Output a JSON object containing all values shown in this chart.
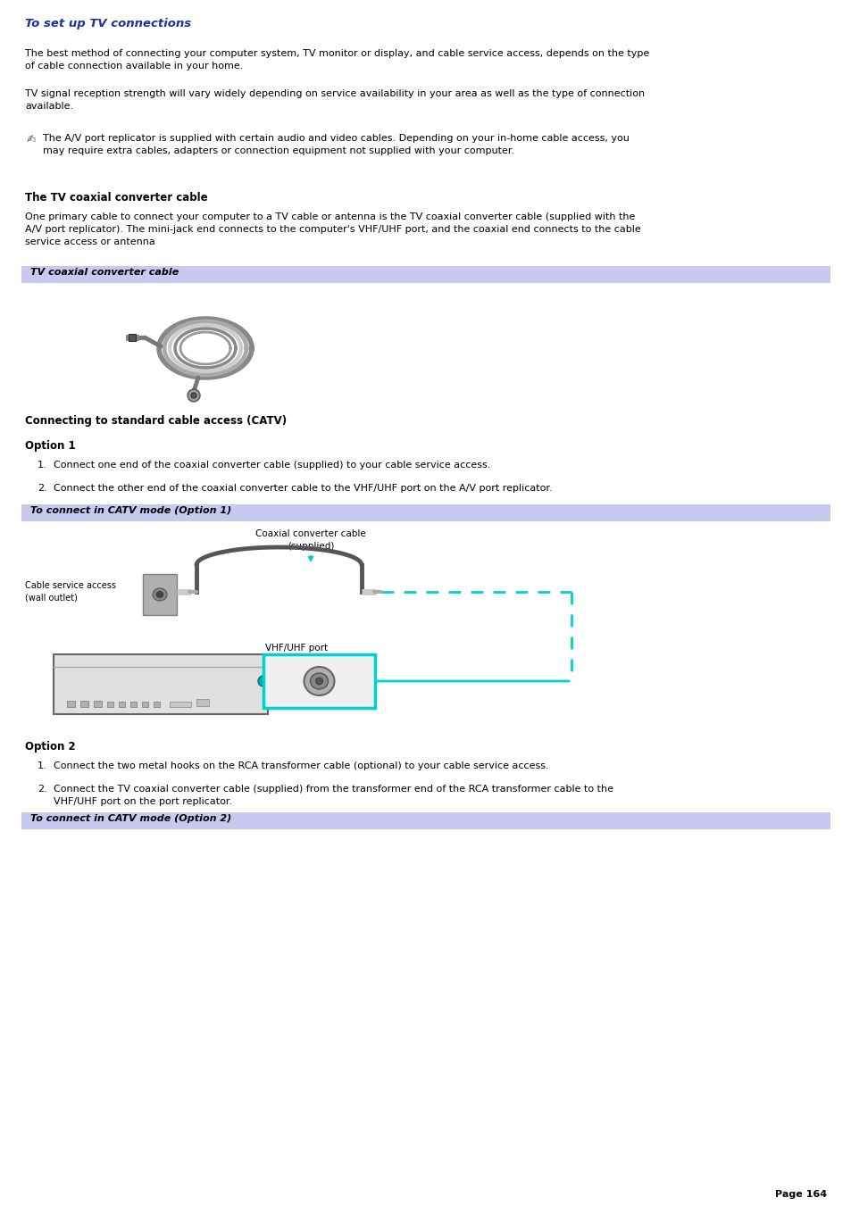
{
  "bg_color": "#ffffff",
  "title": "To set up TV connections",
  "title_color": "#1a3399",
  "title_fontsize": 9.5,
  "body_fontsize": 8.0,
  "bold_fontsize": 8.5,
  "small_fontsize": 7.5,
  "header_bg": "#c8c8f0",
  "header_text_color": "#000033",
  "page_number": "Page 164",
  "para1": "The best method of connecting your computer system, TV monitor or display, and cable service access, depends on the type\nof cable connection available in your home.",
  "para2": "TV signal reception strength will vary widely depending on service availability in your area as well as the type of connection\navailable.",
  "note_text": "The A/V port replicator is supplied with certain audio and video cables. Depending on your in-home cable access, you\nmay require extra cables, adapters or connection equipment not supplied with your computer.",
  "section1_title": "The TV coaxial converter cable",
  "section1_para": "One primary cable to connect your computer to a TV cable or antenna is the TV coaxial converter cable (supplied with the\nA/V port replicator). The mini-jack end connects to the computer's VHF/UHF port, and the coaxial end connects to the cable\nservice access or antenna",
  "header1": "TV coaxial converter cable",
  "section2_title": "Connecting to standard cable access (CATV)",
  "option1_title": "Option 1",
  "opt1_item1": "Connect one end of the coaxial converter cable (supplied) to your cable service access.",
  "opt1_item2": "Connect the other end of the coaxial converter cable to the VHF/UHF port on the A/V port replicator.",
  "header2": "To connect in CATV mode (Option 1)",
  "option2_title": "Option 2",
  "opt2_item1": "Connect the two metal hooks on the RCA transformer cable (optional) to your cable service access.",
  "opt2_item2": "Connect the TV coaxial converter cable (supplied) from the transformer end of the RCA transformer cable to the\nVHF/UHF port on the port replicator.",
  "header3": "To connect in CATV mode (Option 2)",
  "cyan_color": "#00d0d0",
  "dark_color": "#444444",
  "gray_color": "#888888",
  "light_gray": "#cccccc",
  "device_gray": "#d8d8d8"
}
